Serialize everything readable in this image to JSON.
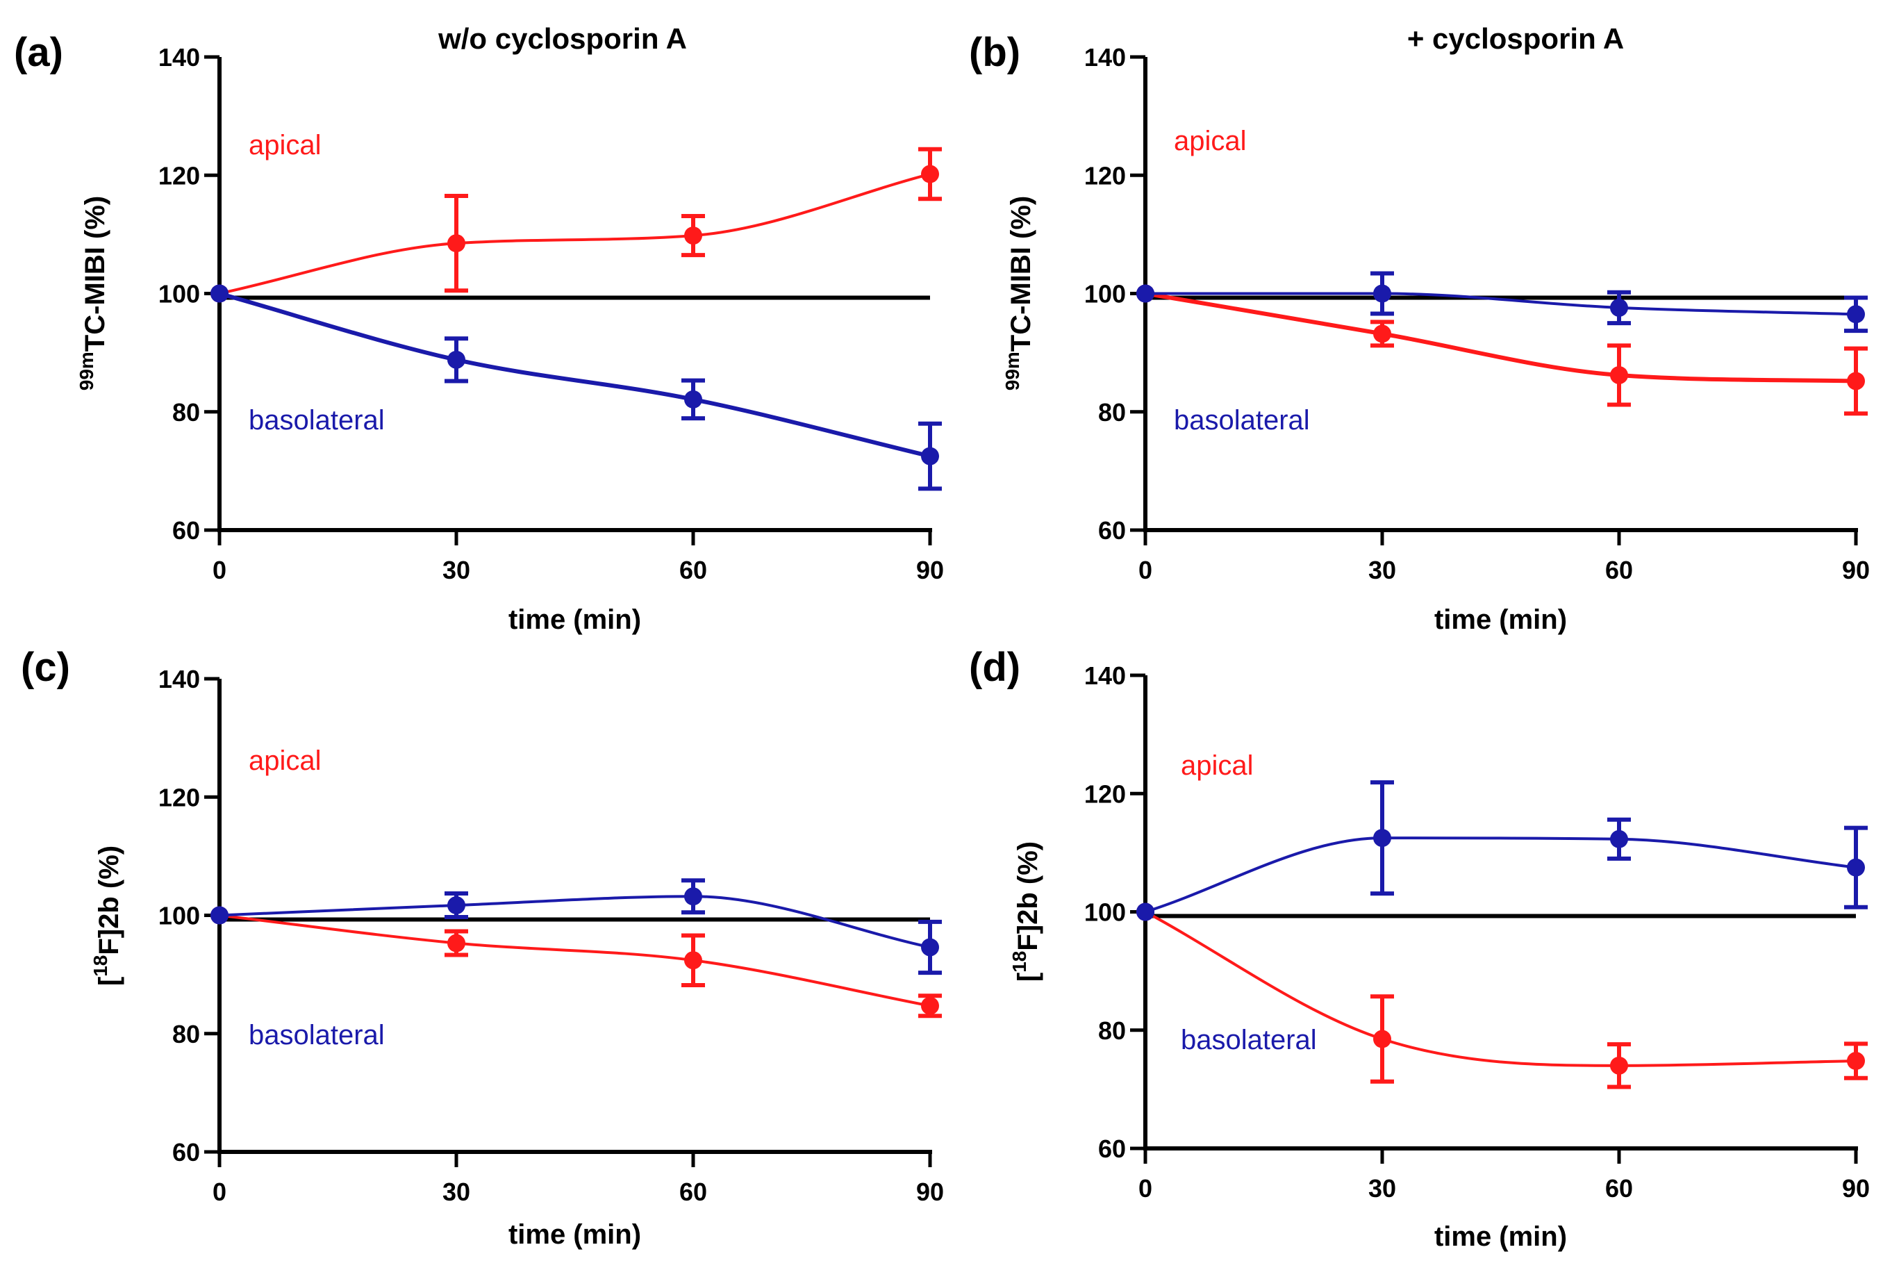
{
  "chart_data": [
    {
      "panel_label": "(a)",
      "type": "line",
      "title": "w/o cyclosporin A",
      "xlabel": "time (min)",
      "ylabel": {
        "base": "TC-MIBI (%)",
        "superscript": "99m",
        "prefix": ""
      },
      "x": [
        0,
        30,
        60,
        90
      ],
      "xticks": [
        0,
        30,
        60,
        90
      ],
      "yticks": [
        60,
        80,
        100,
        120,
        140
      ],
      "xlim": [
        0,
        90
      ],
      "ylim": [
        60,
        140
      ],
      "reference_line": 99.3,
      "annotations": [
        {
          "text": "apical",
          "color": "#ff1a1a",
          "position": "upper-left"
        },
        {
          "text": "basolateral",
          "color": "#1a1aaa",
          "position": "lower-left"
        }
      ],
      "series": [
        {
          "name": "apical",
          "color": "#ff1a1a",
          "line_weight": "thin",
          "values": [
            100,
            108.5,
            109.8,
            120.2
          ],
          "errors": [
            0,
            8,
            3.3,
            4.2
          ]
        },
        {
          "name": "basolateral",
          "color": "#1a1aaa",
          "line_weight": "thick",
          "values": [
            100,
            88.8,
            82.1,
            72.5
          ],
          "errors": [
            0,
            3.6,
            3.2,
            5.5
          ]
        }
      ]
    },
    {
      "panel_label": "(b)",
      "type": "line",
      "title": "+ cyclosporin A",
      "xlabel": "time (min)",
      "ylabel": {
        "base": "TC-MIBI (%)",
        "superscript": "99m",
        "prefix": ""
      },
      "x": [
        0,
        30,
        60,
        90
      ],
      "xticks": [
        0,
        30,
        60,
        90
      ],
      "yticks": [
        60,
        80,
        100,
        120,
        140
      ],
      "xlim": [
        0,
        90
      ],
      "ylim": [
        60,
        140
      ],
      "reference_line": 99.3,
      "annotations": [
        {
          "text": "apical",
          "color": "#ff1a1a",
          "position": "upper-left"
        },
        {
          "text": "basolateral",
          "color": "#1a1aaa",
          "position": "lower-left"
        }
      ],
      "series": [
        {
          "name": "apical",
          "color": "#ff1a1a",
          "line_weight": "thick",
          "values": [
            100,
            93.2,
            86.2,
            85.2
          ],
          "errors": [
            0,
            2,
            5,
            5.5
          ]
        },
        {
          "name": "basolateral",
          "color": "#1a1aaa",
          "line_weight": "thin",
          "values": [
            100,
            100,
            97.6,
            96.5
          ],
          "errors": [
            0,
            3.4,
            2.6,
            2.8
          ]
        }
      ]
    },
    {
      "panel_label": "(c)",
      "type": "line",
      "title": "",
      "xlabel": "time (min)",
      "ylabel": {
        "base": "F]2b (%)",
        "superscript": "18",
        "prefix": "["
      },
      "x": [
        0,
        30,
        60,
        90
      ],
      "xticks": [
        0,
        30,
        60,
        90
      ],
      "yticks": [
        60,
        80,
        100,
        120,
        140
      ],
      "xlim": [
        0,
        90
      ],
      "ylim": [
        60,
        140
      ],
      "reference_line": 99.3,
      "annotations": [
        {
          "text": "apical",
          "color": "#ff1a1a",
          "position": "upper-left"
        },
        {
          "text": "basolateral",
          "color": "#1a1aaa",
          "position": "lower-left"
        }
      ],
      "series": [
        {
          "name": "apical",
          "color": "#ff1a1a",
          "line_weight": "thin",
          "values": [
            100,
            95.3,
            92.4,
            84.7
          ],
          "errors": [
            0,
            2,
            4.2,
            1.7
          ]
        },
        {
          "name": "basolateral",
          "color": "#1a1aaa",
          "line_weight": "thin",
          "values": [
            100,
            101.7,
            103.2,
            94.6
          ],
          "errors": [
            0,
            2,
            2.7,
            4.3
          ]
        }
      ]
    },
    {
      "panel_label": "(d)",
      "type": "line",
      "title": "",
      "xlabel": "time (min)",
      "ylabel": {
        "base": "F]2b (%)",
        "superscript": "18",
        "prefix": "["
      },
      "x": [
        0,
        30,
        60,
        90
      ],
      "xticks": [
        0,
        30,
        60,
        90
      ],
      "yticks": [
        60,
        80,
        100,
        120,
        140
      ],
      "xlim": [
        0,
        90
      ],
      "ylim": [
        60,
        140
      ],
      "reference_line": 99.3,
      "annotations": [
        {
          "text": "apical",
          "color": "#ff1a1a",
          "position": "upper-left"
        },
        {
          "text": "basolateral",
          "color": "#1a1aaa",
          "position": "lower-left"
        }
      ],
      "series": [
        {
          "name": "apical",
          "color": "#ff1a1a",
          "line_weight": "thin",
          "values": [
            100,
            78.5,
            74,
            74.8
          ],
          "errors": [
            0,
            7.2,
            3.6,
            2.9
          ]
        },
        {
          "name": "basolateral",
          "color": "#1a1aaa",
          "line_weight": "thin",
          "values": [
            100,
            112.5,
            112.3,
            107.5
          ],
          "errors": [
            0,
            9.4,
            3.3,
            6.7
          ]
        }
      ]
    }
  ]
}
